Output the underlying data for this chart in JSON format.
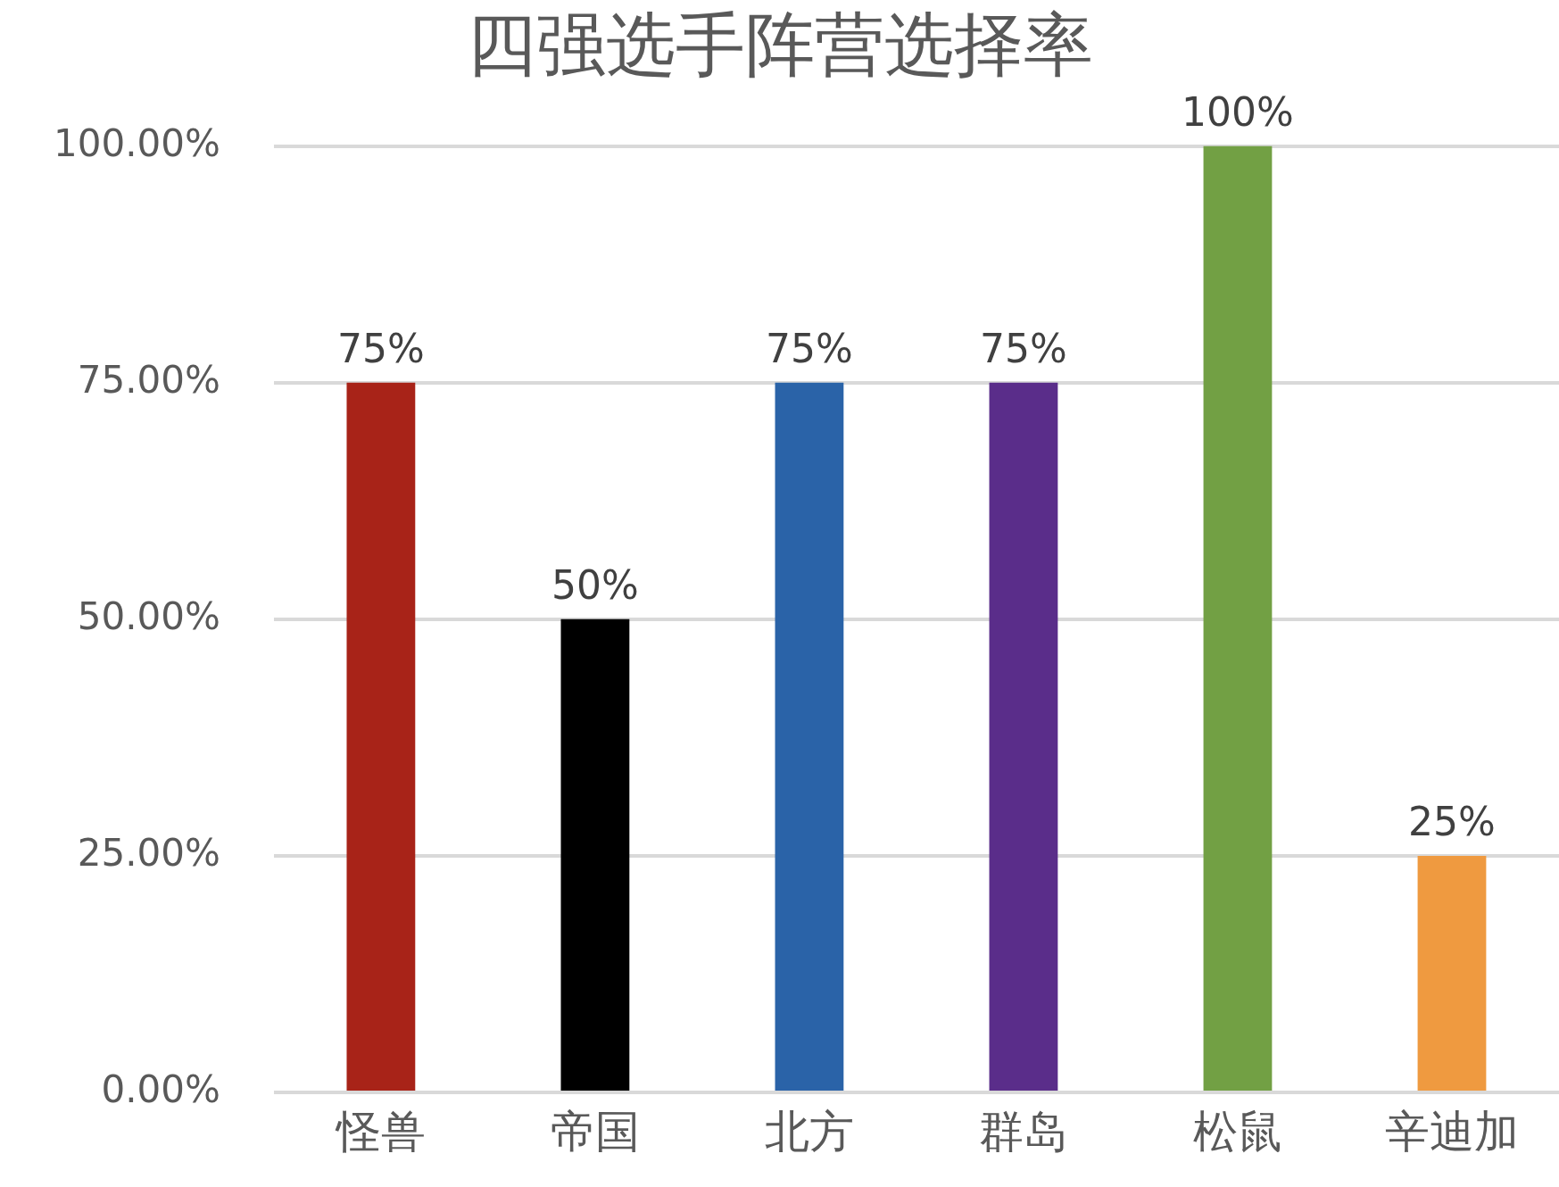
{
  "chart_data": {
    "type": "bar",
    "title": "四强选手阵营选择率",
    "categories": [
      "怪兽",
      "帝国",
      "北方",
      "群岛",
      "松鼠",
      "辛迪加"
    ],
    "values": [
      75,
      50,
      75,
      75,
      100,
      25
    ],
    "colors": [
      "#a82318",
      "#000000",
      "#2a63a8",
      "#5a2d8a",
      "#72a044",
      "#ef9a40"
    ],
    "value_labels": [
      "75%",
      "50%",
      "75%",
      "75%",
      "100%",
      "25%"
    ],
    "ylim": [
      0,
      100
    ],
    "yticks": [
      {
        "value": 0,
        "label": "0.00%"
      },
      {
        "value": 25,
        "label": "25.00%"
      },
      {
        "value": 50,
        "label": "50.00%"
      },
      {
        "value": 75,
        "label": "75.00%"
      },
      {
        "value": 100,
        "label": "100.00%"
      }
    ],
    "grid": "y"
  }
}
